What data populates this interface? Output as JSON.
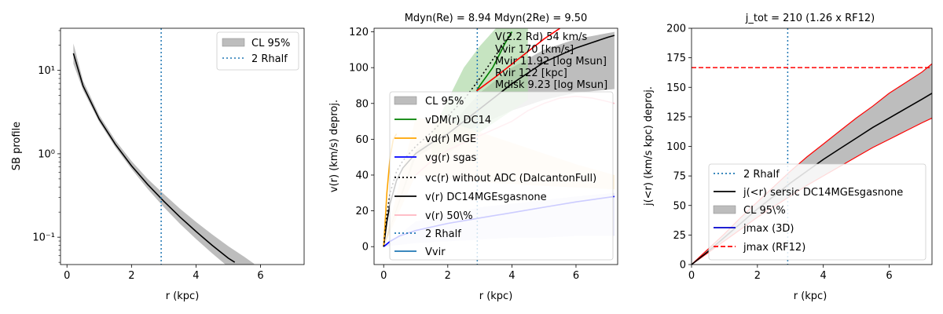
{
  "chart_data": [
    {
      "type": "line",
      "title": "",
      "xlabel": "r (kpc)",
      "ylabel": "SB profile",
      "xlim": [
        -0.2,
        7.35
      ],
      "ylim": [
        0.047,
        32
      ],
      "yscale": "log",
      "xticks": [
        0,
        2,
        4,
        6
      ],
      "yticks": [
        0.1,
        1,
        10
      ],
      "ytick_labels": [
        "10⁻¹",
        "10⁰",
        "10¹"
      ],
      "legend": {
        "position": "upper-right",
        "entries": [
          "CL 95%",
          "2 Rhalf"
        ]
      },
      "vline": {
        "x": 2.92,
        "label": "2 Rhalf",
        "color": "#1f77b4"
      },
      "series": [
        {
          "name": "SB profile",
          "color": "#000000",
          "x": [
            0.2,
            0.5,
            1.0,
            1.5,
            2.0,
            2.5,
            3.0,
            3.5,
            4.0,
            4.5,
            5.0,
            5.2
          ],
          "y": [
            16,
            6.5,
            2.6,
            1.3,
            0.72,
            0.43,
            0.27,
            0.175,
            0.117,
            0.08,
            0.056,
            0.05
          ]
        },
        {
          "name": "CL 95%",
          "kind": "band",
          "color": "#bdbdbd",
          "x": [
            0.2,
            0.5,
            1.0,
            1.5,
            2.0,
            2.5,
            3.0,
            3.5,
            4.0,
            4.5,
            5.0,
            5.5,
            5.8
          ],
          "lower": [
            12,
            5.8,
            2.4,
            1.2,
            0.66,
            0.38,
            0.23,
            0.145,
            0.095,
            0.064,
            0.044,
            0.032,
            0.026
          ],
          "upper": [
            21,
            7.5,
            2.9,
            1.45,
            0.82,
            0.5,
            0.33,
            0.22,
            0.152,
            0.108,
            0.078,
            0.058,
            0.048
          ]
        }
      ]
    },
    {
      "type": "line",
      "title": "Mdyn(Re) = 8.94  Mdyn(2Re) = 9.50",
      "xlabel": "r (kpc)",
      "ylabel": "v(r) (km/s) deproj.",
      "xlim": [
        -0.3,
        7.3
      ],
      "ylim": [
        -10,
        122
      ],
      "xticks": [
        0,
        2,
        4,
        6
      ],
      "yticks": [
        0,
        20,
        40,
        60,
        80,
        100,
        120
      ],
      "legend": {
        "position": "lower-left",
        "entries": [
          "CL 95%",
          "vDM(r) DC14",
          "vd(r) MGE",
          "vg(r) sgas",
          "vc(r) without ADC (DalcantonFull)",
          "v(r) DC14MGEsgasnone",
          "v(r) 50\\%",
          "2 Rhalf",
          "Vvir"
        ]
      },
      "annotations": [
        "V(2.2 Rd) 54 km/s",
        "Vvir 170 [km/s]",
        "Mvir 11.92 [log Msun]",
        "Rvir 122 [kpc]",
        "Mdisk 9.23 [log Msun]"
      ],
      "vline": {
        "x": 2.92,
        "label": "2 Rhalf",
        "color": "#1f77b4"
      },
      "series": [
        {
          "name": "v(r) DC14MGEsgasnone",
          "color": "#000000",
          "x": [
            0,
            0.1,
            0.2,
            0.4,
            0.6,
            1.0,
            1.5,
            2.0,
            2.5,
            3.0,
            3.5,
            4.0,
            4.5,
            5.0,
            5.5,
            6.0,
            6.5,
            7.0,
            7.2
          ],
          "y": [
            0,
            14,
            24,
            37,
            44,
            52,
            58,
            63,
            70,
            77,
            84,
            91,
            97,
            103,
            107,
            111,
            114,
            117,
            118
          ]
        },
        {
          "name": "CL 95%",
          "kind": "band",
          "color": "#bdbdbd",
          "x": [
            0,
            1,
            2,
            3,
            4,
            5,
            6,
            7.2
          ],
          "lower": [
            0,
            50,
            60,
            68,
            76,
            82,
            86,
            88
          ],
          "upper": [
            0,
            54,
            66,
            86,
            100,
            110,
            116,
            120
          ]
        },
        {
          "name": "vDM(r) DC14",
          "color": "#008000",
          "x": [
            2.9,
            3.0,
            3.2,
            3.4,
            3.6,
            3.8,
            4.0
          ],
          "y": [
            87,
            90,
            95,
            100,
            107,
            114,
            120
          ]
        },
        {
          "name": "vDM band",
          "kind": "band",
          "color": "#a8d5a0",
          "x": [
            1.5,
            2.0,
            2.5,
            3.0,
            3.5,
            4.0,
            4.5
          ],
          "lower": [
            48,
            52,
            58,
            64,
            70,
            76,
            82
          ],
          "upper": [
            64,
            82,
            100,
            112,
            122,
            122,
            122
          ]
        },
        {
          "name": "vd(r) MGE",
          "color": "#ffa500",
          "x": [
            0,
            0.1,
            0.2,
            0.3,
            0.4
          ],
          "y": [
            0,
            30,
            50,
            60,
            63
          ]
        },
        {
          "name": "vd band",
          "kind": "band",
          "color": "#fde8c4",
          "x": [
            0,
            1,
            2,
            3,
            4,
            5,
            6,
            7.2
          ],
          "lower": [
            0,
            40,
            38,
            36,
            35,
            34,
            33,
            32
          ],
          "upper": [
            0,
            72,
            70,
            64,
            58,
            52,
            46,
            40
          ]
        },
        {
          "name": "vg(r) sgas",
          "color": "#0000ff",
          "x": [
            0,
            0.2,
            0.5,
            1.0,
            1.5,
            2.0,
            3.0,
            4.0,
            5.0,
            6.0,
            7.2
          ],
          "y": [
            0,
            3,
            6,
            9,
            11,
            13,
            16,
            19,
            22,
            25,
            28
          ]
        },
        {
          "name": "vg band",
          "kind": "band",
          "color": "#dcdcf8",
          "x": [
            0,
            1,
            2,
            3,
            4,
            5,
            6,
            7.2
          ],
          "lower": [
            0,
            2,
            3,
            4,
            5,
            5,
            6,
            6
          ],
          "upper": [
            0,
            14,
            18,
            22,
            24,
            26,
            28,
            30
          ]
        },
        {
          "name": "vc(r) without ADC (DalcantonFull)",
          "color": "#000000",
          "dash": "dotted",
          "x": [
            0,
            0.1,
            0.2,
            0.4,
            0.6,
            1.0,
            1.5,
            2.0,
            2.5,
            3.0,
            3.5,
            4.0
          ],
          "y": [
            0,
            18,
            30,
            42,
            48,
            56,
            64,
            73,
            82,
            94,
            107,
            120
          ]
        },
        {
          "name": "v(r) 50\\%",
          "color": "#ffb6c1",
          "x": [
            1.0,
            1.5,
            2.0,
            2.5,
            3.0,
            3.5,
            4.0,
            4.5,
            5.0,
            5.5,
            6.0,
            6.5,
            7.0,
            7.2
          ],
          "y": [
            40,
            48,
            54,
            58,
            62,
            66,
            70,
            76,
            80,
            83,
            84,
            83,
            81,
            80
          ]
        },
        {
          "name": "upper red",
          "color": "#ff0000",
          "x": [
            2.9,
            3.5,
            4.0,
            4.5,
            5.0,
            5.5
          ],
          "y": [
            87,
            95,
            102,
            109,
            116,
            122
          ]
        }
      ]
    },
    {
      "type": "line",
      "title": "j_tot = 210 (1.26 x RF12)",
      "xlabel": "r (kpc)",
      "ylabel": "j(<r) (km/s kpc) deproj.",
      "xlim": [
        0,
        7.3
      ],
      "ylim": [
        0,
        200
      ],
      "xticks": [
        0,
        2,
        4,
        6
      ],
      "yticks": [
        0,
        25,
        50,
        75,
        100,
        125,
        150,
        175,
        200
      ],
      "legend": {
        "position": "lower-right",
        "entries": [
          "2 Rhalf",
          "j(<r) sersic DC14MGEsgasnone",
          "CL 95\\%",
          "jmax (3D)",
          "jmax (RF12)"
        ]
      },
      "vline": {
        "x": 2.92,
        "label": "2 Rhalf",
        "color": "#1f77b4"
      },
      "hline": {
        "y": 166.7,
        "label": "jmax (RF12)",
        "color": "#ff0000"
      },
      "series": [
        {
          "name": "j(<r) sersic DC14MGEsgasnone",
          "color": "#000000",
          "x": [
            0,
            0.5,
            1.0,
            1.5,
            2.0,
            2.5,
            3.0,
            3.5,
            4.0,
            4.5,
            5.0,
            5.5,
            6.0,
            6.5,
            7.0,
            7.3
          ],
          "y": [
            0,
            11,
            23,
            35,
            47,
            58,
            69,
            79,
            89,
            98,
            107,
            116,
            124,
            132,
            140,
            145
          ]
        },
        {
          "name": "CL 95\\%",
          "kind": "band",
          "color": "#bdbdbd",
          "x": [
            0,
            0.5,
            1.0,
            1.5,
            2.0,
            2.5,
            3.0,
            3.5,
            4.0,
            4.5,
            5.0,
            5.5,
            6.0,
            6.5,
            7.0,
            7.3
          ],
          "lower": [
            0,
            10,
            20,
            30,
            40,
            49,
            58,
            67,
            75,
            83,
            91,
            99,
            106,
            113,
            120,
            124
          ],
          "upper": [
            0,
            13,
            26,
            40,
            53,
            66,
            79,
            91,
            102,
            113,
            124,
            134,
            145,
            154,
            163,
            170
          ]
        }
      ]
    }
  ]
}
